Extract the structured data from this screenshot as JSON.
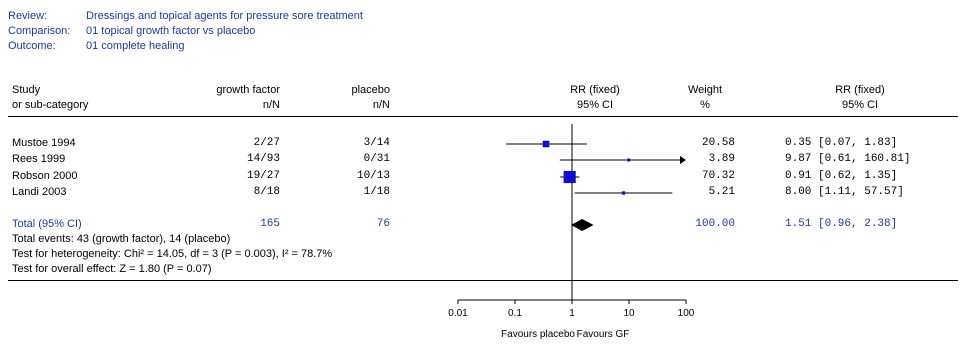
{
  "header": {
    "review_label": "Review:",
    "review_value": "Dressings and topical agents for pressure sore treatment",
    "comparison_label": "Comparison:",
    "comparison_value": "01 topical growth factor vs placebo",
    "outcome_label": "Outcome:",
    "outcome_value": "01 complete healing"
  },
  "columns": {
    "study_1": "Study",
    "study_2": "or sub-category",
    "treat_1": "growth factor",
    "treat_2": "n/N",
    "control_1": "placebo",
    "control_2": "n/N",
    "rr_1": "RR (fixed)",
    "rr_2": "95% CI",
    "weight_1": "Weight",
    "weight_2": "%",
    "rrv_1": "RR (fixed)",
    "rrv_2": "95% CI"
  },
  "rows": [
    {
      "study": "Mustoe 1994",
      "treat": "2/27",
      "control": "3/14",
      "weight": "20.58",
      "ci_text": "0.35 [0.07, 1.83]"
    },
    {
      "study": "Rees 1999",
      "treat": "14/93",
      "control": "0/31",
      "weight": "3.89",
      "ci_text": "9.87 [0.61, 160.81]"
    },
    {
      "study": "Robson 2000",
      "treat": "19/27",
      "control": "10/13",
      "weight": "70.32",
      "ci_text": "0.91 [0.62, 1.35]"
    },
    {
      "study": "Landi 2003",
      "treat": "8/18",
      "control": "1/18",
      "weight": "5.21",
      "ci_text": "8.00 [1.11, 57.57]"
    }
  ],
  "total": {
    "label": "Total (95% CI)",
    "treat": "165",
    "control": "76",
    "weight": "100.00",
    "ci_text": "1.51 [0.96, 2.38]"
  },
  "footer": {
    "events": "Total events: 43 (growth factor), 14 (placebo)",
    "heterogeneity": "Test for heterogeneity: Chi² = 14.05, df = 3 (P = 0.003), I² = 78.7%",
    "overall": "Test for overall effect: Z = 1.80 (P = 0.07)"
  },
  "colors": {
    "marker": "#1010cc",
    "text_blue": "#1a3aa0"
  },
  "chart_data": {
    "type": "forest",
    "scale": "log",
    "xlim": [
      0.01,
      100
    ],
    "ticks": [
      "0.01",
      "0.1",
      "1",
      "10",
      "100"
    ],
    "tick_values": [
      0.01,
      0.1,
      1,
      10,
      100
    ],
    "xlabel_left": "Favours placebo",
    "xlabel_right": "Favours GF",
    "studies": [
      {
        "name": "Mustoe 1994",
        "rr": 0.35,
        "lo": 0.07,
        "hi": 1.83,
        "weight": 20.58
      },
      {
        "name": "Rees 1999",
        "rr": 9.87,
        "lo": 0.61,
        "hi": 160.81,
        "weight": 3.89
      },
      {
        "name": "Robson 2000",
        "rr": 0.91,
        "lo": 0.62,
        "hi": 1.35,
        "weight": 70.32
      },
      {
        "name": "Landi 2003",
        "rr": 8.0,
        "lo": 1.11,
        "hi": 57.57,
        "weight": 5.21
      }
    ],
    "pooled": {
      "rr": 1.51,
      "lo": 0.96,
      "hi": 2.38
    }
  }
}
